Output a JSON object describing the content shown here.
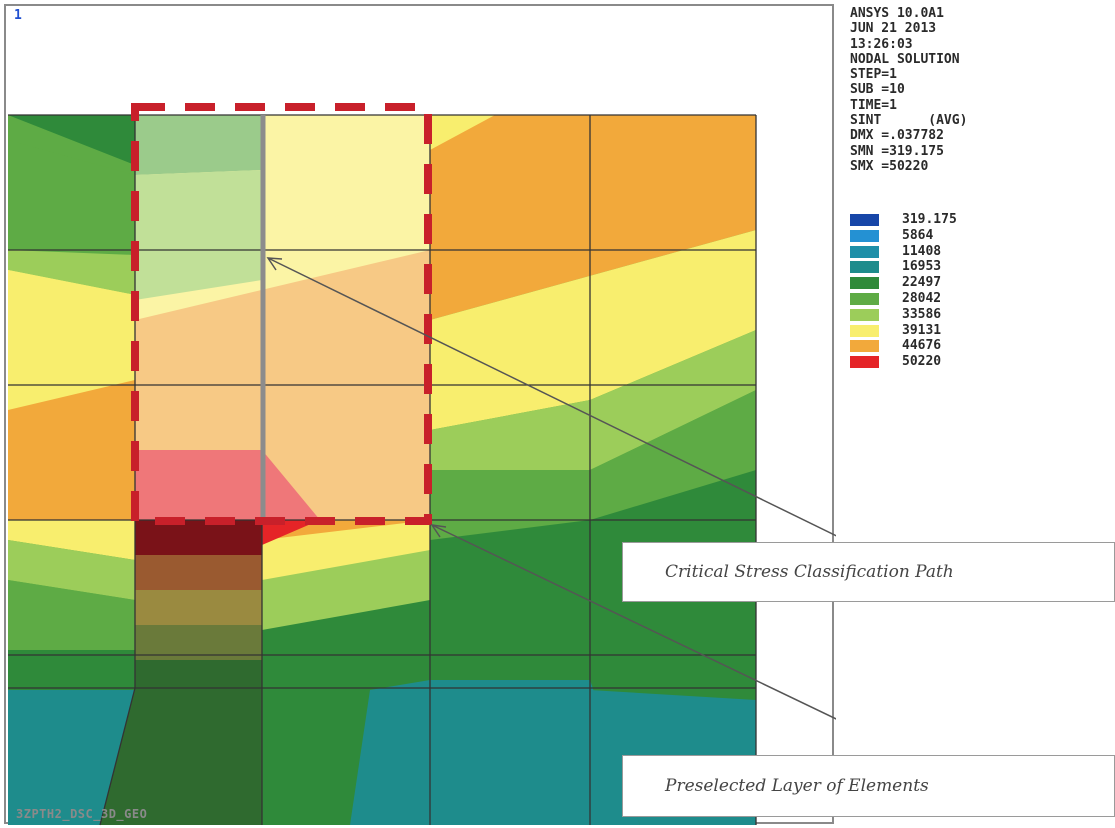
{
  "viewport": {
    "window_number": "1",
    "model_name": "3ZPTH2_DSC_3D_GEO"
  },
  "info": {
    "lines": [
      "ANSYS 10.0A1",
      "JUN 21 2013",
      "13:26:03",
      "NODAL SOLUTION",
      "STEP=1",
      "SUB =10",
      "TIME=1",
      "SINT      (AVG)",
      "DMX =.037782",
      "SMN =319.175",
      "SMX =50220"
    ]
  },
  "legend": {
    "values": [
      "319.175",
      "5864",
      "11408",
      "16953",
      "22497",
      "28042",
      "33586",
      "39131",
      "44676",
      "50220"
    ],
    "colors": [
      "#1746a8",
      "#2491d3",
      "#1e8fa8",
      "#1e8c8c",
      "#2f8a3a",
      "#5eab45",
      "#9ccd5a",
      "#f8ee6e",
      "#f2a93b",
      "#e52427"
    ]
  },
  "callouts": {
    "path": "Critical Stress Classification Path",
    "layer": "Preselected Layer of Elements"
  },
  "colors": {
    "dark_green": "#2f8a3a",
    "green": "#5eab45",
    "light_green": "#9ccd5a",
    "yellow": "#f8ee6e",
    "orange": "#f2a93b",
    "red": "#e52427",
    "teal": "#1e8c8c",
    "selection_dash": "#c8202a"
  }
}
